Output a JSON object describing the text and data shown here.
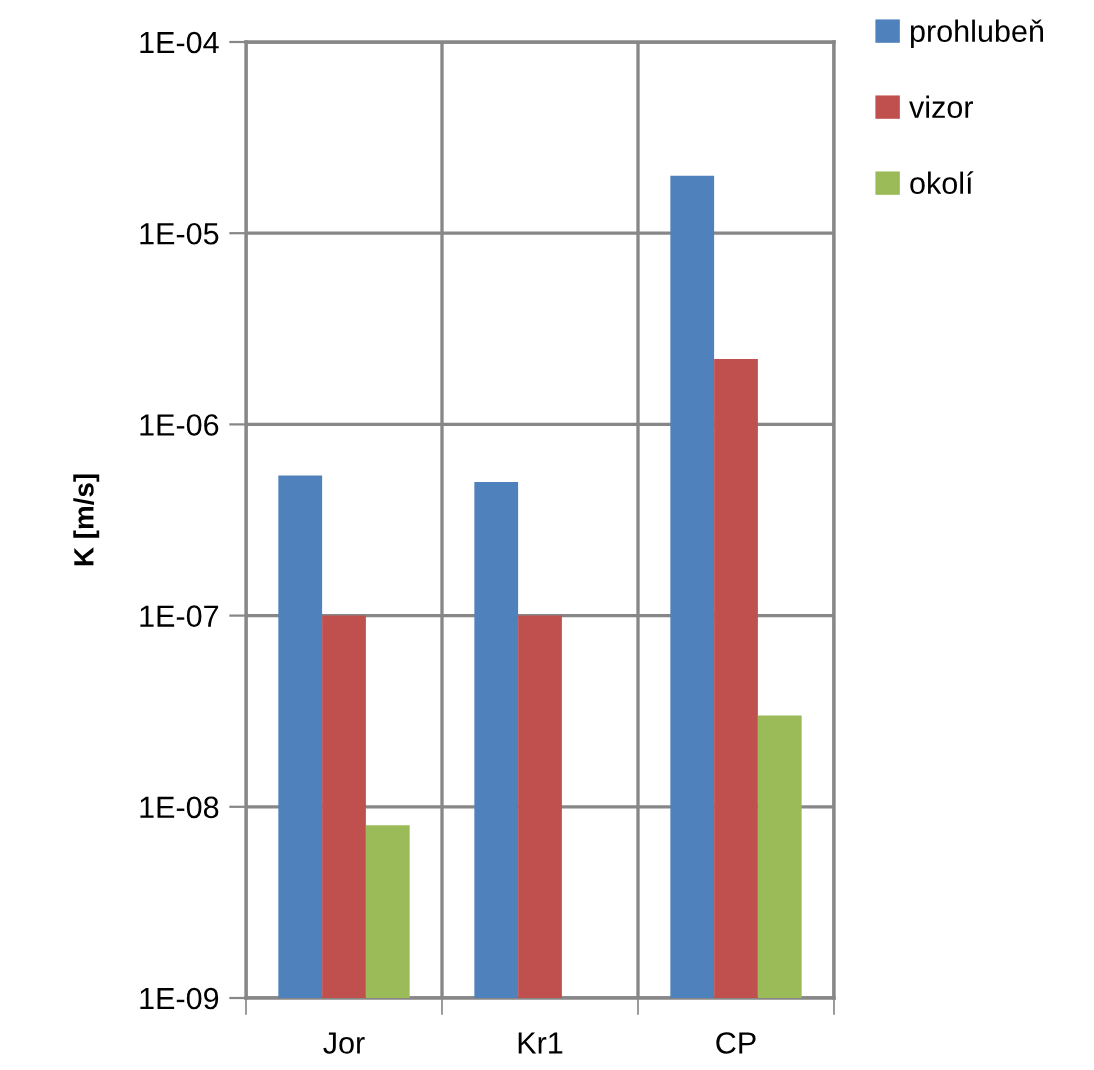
{
  "chart_data": {
    "type": "bar",
    "ylabel": "K [m/s]",
    "categories": [
      "Jor",
      "Kr1",
      "CP"
    ],
    "series": [
      {
        "name": "prohlubeň",
        "color": "#4f81bd",
        "values": [
          5.4e-07,
          5e-07,
          2e-05
        ]
      },
      {
        "name": "vizor",
        "color": "#c0504d",
        "values": [
          1e-07,
          1e-07,
          2.2e-06
        ]
      },
      {
        "name": "okolí",
        "color": "#9bbb59",
        "values": [
          8e-09,
          null,
          3e-08
        ]
      }
    ],
    "log": "y",
    "ylim": [
      1e-09,
      0.0001
    ],
    "yticks": [
      {
        "value": 1e-09,
        "label": "1E-09"
      },
      {
        "value": 1e-08,
        "label": "1E-08"
      },
      {
        "value": 1e-07,
        "label": "1E-07"
      },
      {
        "value": 1e-06,
        "label": "1E-06"
      },
      {
        "value": 1e-05,
        "label": "1E-05"
      },
      {
        "value": 0.0001,
        "label": "1E-04"
      }
    ],
    "grid": true,
    "legend": "right"
  }
}
